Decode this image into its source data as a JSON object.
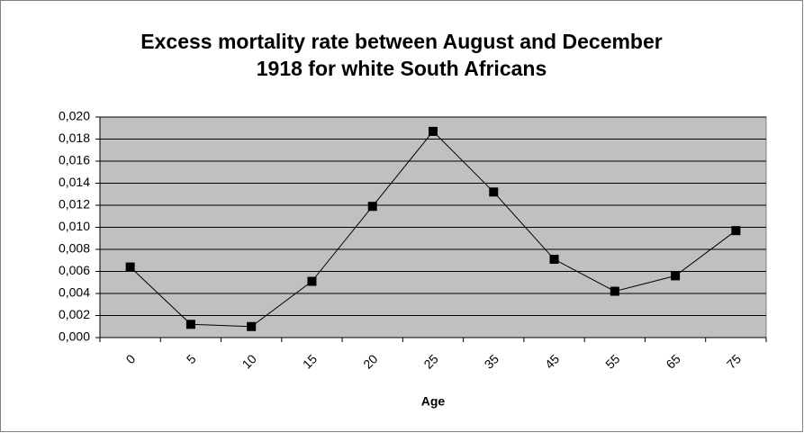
{
  "chart_data": {
    "type": "line",
    "title": "Excess mortality rate between August and December 1918 for white South Africans",
    "x_label": "Age",
    "categories": [
      "0",
      "5",
      "10",
      "15",
      "20",
      "25",
      "35",
      "45",
      "55",
      "65",
      "75"
    ],
    "series": [
      {
        "color": "#000000",
        "values": [
          0.0064,
          0.0012,
          0.001,
          0.0051,
          0.0119,
          0.0187,
          0.0132,
          0.0071,
          0.0042,
          0.0056,
          0.0097
        ]
      }
    ],
    "ylim": [
      0,
      0.02
    ],
    "yticks": [
      {
        "value": 0,
        "label": "0,000"
      },
      {
        "value": 0.002,
        "label": "0,002"
      },
      {
        "value": 0.004,
        "label": "0,004"
      },
      {
        "value": 0.006,
        "label": "0,006"
      },
      {
        "value": 0.008,
        "label": "0,008"
      },
      {
        "value": 0.01,
        "label": "0,010"
      },
      {
        "value": 0.012,
        "label": "0,012"
      },
      {
        "value": 0.014,
        "label": "0,014"
      },
      {
        "value": 0.016,
        "label": "0,016"
      },
      {
        "value": 0.018,
        "label": "0,018"
      },
      {
        "value": 0.02,
        "label": "0,020"
      }
    ],
    "grid": true,
    "plot_background": "#c0c0c0"
  }
}
